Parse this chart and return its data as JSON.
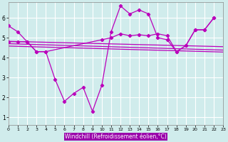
{
  "background_color": "#d0ecec",
  "line_color": "#bb00bb",
  "grid_color": "#b8d8d8",
  "xlabel": "Windchill (Refroidissement éolien,°C)",
  "xlim": [
    0,
    23
  ],
  "ylim": [
    0.6,
    6.8
  ],
  "yticks": [
    1,
    2,
    3,
    4,
    5,
    6
  ],
  "xticks": [
    0,
    1,
    2,
    3,
    4,
    5,
    6,
    7,
    8,
    9,
    10,
    11,
    12,
    13,
    14,
    15,
    16,
    17,
    18,
    19,
    20,
    21,
    22,
    23
  ],
  "series_main_x": [
    0,
    1,
    2,
    3,
    4,
    5,
    6,
    7,
    8,
    9,
    10,
    11,
    12,
    13,
    14,
    15,
    16,
    17,
    18,
    19,
    20,
    21,
    22
  ],
  "series_main_y": [
    5.6,
    5.3,
    4.8,
    4.3,
    4.3,
    2.9,
    1.8,
    2.2,
    2.5,
    1.3,
    2.6,
    5.3,
    6.6,
    6.2,
    6.4,
    6.2,
    5.0,
    4.9,
    4.3,
    4.6,
    5.4,
    5.4,
    6.0
  ],
  "series2_x": [
    0,
    1,
    2,
    3,
    4,
    10,
    11,
    12,
    13,
    14,
    15,
    16,
    17,
    18,
    19,
    20,
    21,
    22
  ],
  "series2_y": [
    4.8,
    4.8,
    4.8,
    4.3,
    4.3,
    4.9,
    5.0,
    5.2,
    5.1,
    5.15,
    5.1,
    5.2,
    5.1,
    4.3,
    4.6,
    5.4,
    5.4,
    6.0
  ],
  "trend1_x": [
    0,
    23
  ],
  "trend1_y": [
    4.82,
    4.55
  ],
  "trend2_x": [
    0,
    23
  ],
  "trend2_y": [
    4.7,
    4.38
  ],
  "trend3_x": [
    0,
    23
  ],
  "trend3_y": [
    4.58,
    4.28
  ]
}
